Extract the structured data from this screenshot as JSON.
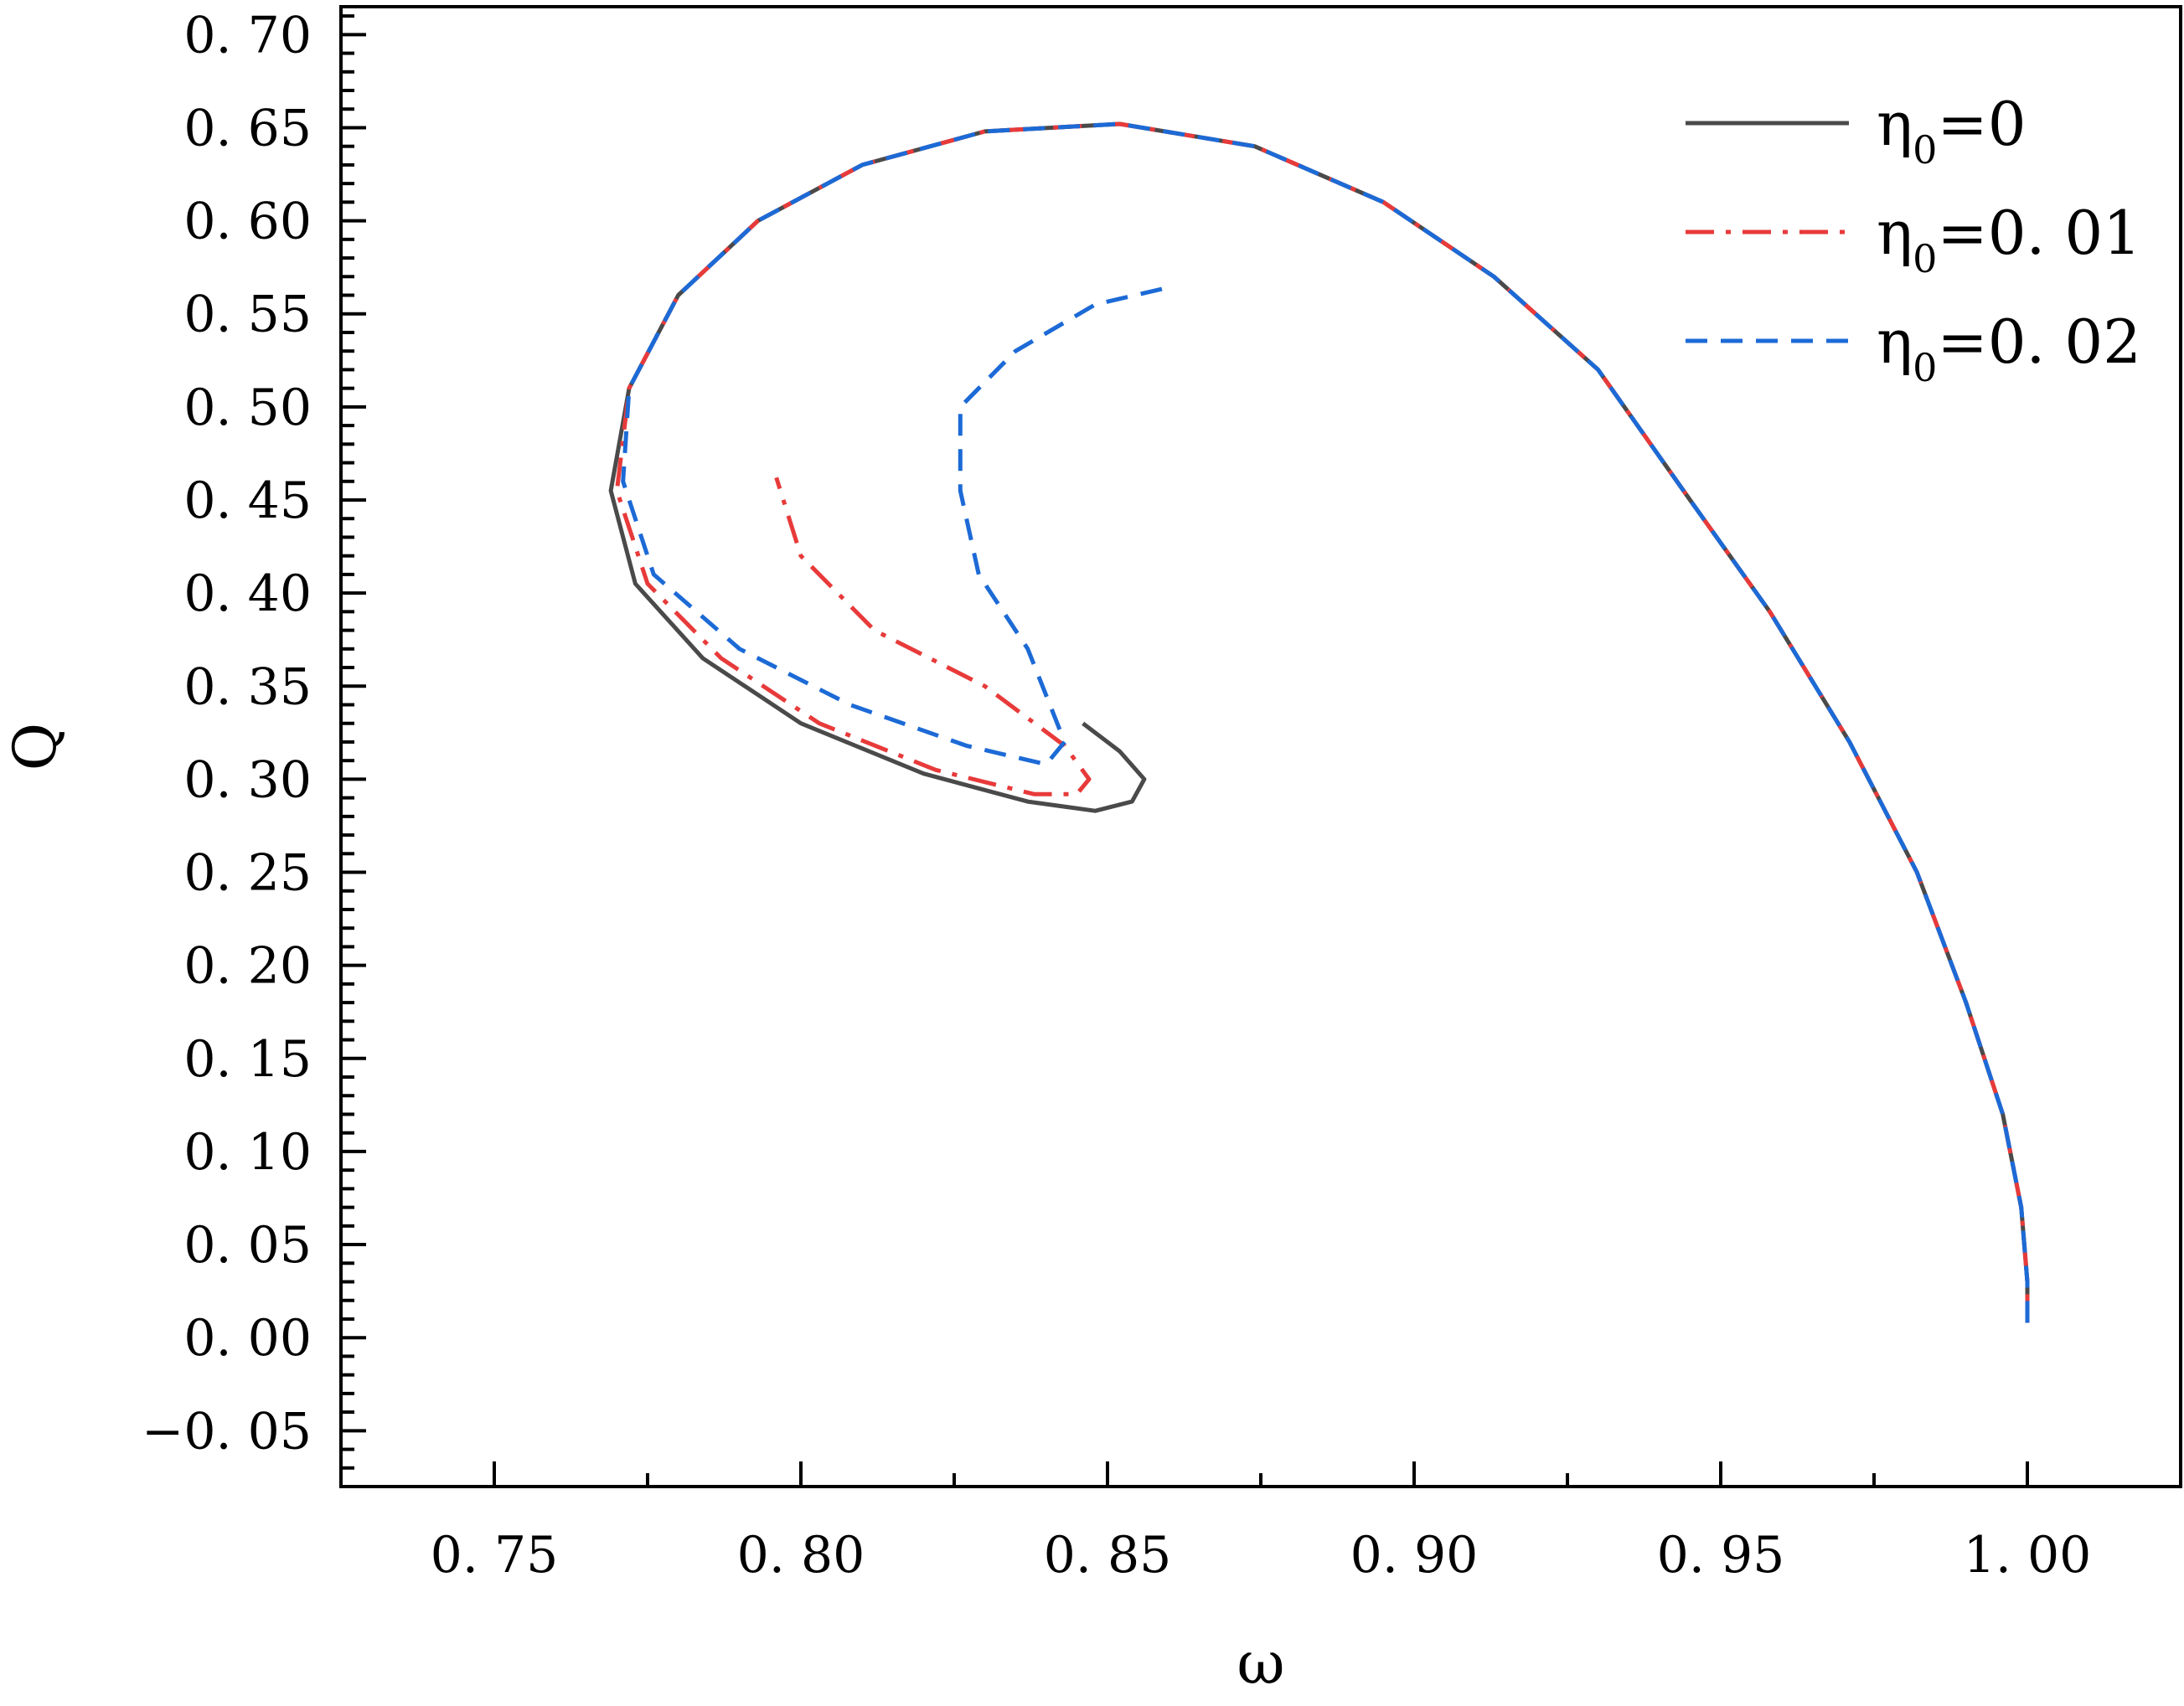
{
  "chart_data": {
    "type": "line",
    "xlabel": "ω",
    "ylabel": "Q",
    "xlim": [
      0.725,
      1.025
    ],
    "ylim": [
      -0.08,
      0.715
    ],
    "x_ticks": [
      0.75,
      0.8,
      0.85,
      0.9,
      0.95,
      1.0
    ],
    "x_tick_labels": [
      "0. 75",
      "0. 80",
      "0. 85",
      "0. 90",
      "0. 95",
      "1. 00"
    ],
    "y_ticks": [
      -0.05,
      0.0,
      0.05,
      0.1,
      0.15,
      0.2,
      0.25,
      0.3,
      0.35,
      0.4,
      0.45,
      0.5,
      0.55,
      0.6,
      0.65,
      0.7
    ],
    "y_tick_labels": [
      "−0. 05",
      "0. 00",
      "0. 05",
      "0. 10",
      "0. 15",
      "0. 20",
      "0. 25",
      "0. 30",
      "0. 35",
      "0. 40",
      "0. 45",
      "0. 50",
      "0. 55",
      "0. 60",
      "0. 65",
      "0. 70"
    ],
    "grid": false,
    "legend_position": "top-right",
    "series": [
      {
        "name_main": "η",
        "name_sub": "0",
        "name_rest": "=0",
        "color": "#4a4a4a",
        "style": "solid",
        "points": [
          [
            1.0,
            0.008
          ],
          [
            1.0,
            0.03
          ],
          [
            0.999,
            0.07
          ],
          [
            0.996,
            0.12
          ],
          [
            0.99,
            0.18
          ],
          [
            0.982,
            0.25
          ],
          [
            0.971,
            0.32
          ],
          [
            0.958,
            0.39
          ],
          [
            0.945,
            0.45
          ],
          [
            0.93,
            0.52
          ],
          [
            0.913,
            0.57
          ],
          [
            0.895,
            0.61
          ],
          [
            0.874,
            0.64
          ],
          [
            0.852,
            0.652
          ],
          [
            0.83,
            0.648
          ],
          [
            0.81,
            0.63
          ],
          [
            0.793,
            0.6
          ],
          [
            0.78,
            0.56
          ],
          [
            0.772,
            0.51
          ],
          [
            0.769,
            0.455
          ],
          [
            0.773,
            0.405
          ],
          [
            0.784,
            0.365
          ],
          [
            0.8,
            0.33
          ],
          [
            0.82,
            0.303
          ],
          [
            0.837,
            0.288
          ],
          [
            0.848,
            0.283
          ],
          [
            0.854,
            0.288
          ],
          [
            0.856,
            0.3
          ],
          [
            0.852,
            0.315
          ],
          [
            0.846,
            0.33
          ]
        ]
      },
      {
        "name_main": "η",
        "name_sub": "0",
        "name_rest": "=0. 01",
        "color": "#e83a3a",
        "style": "dashdot",
        "points": [
          [
            1.0,
            0.008
          ],
          [
            1.0,
            0.03
          ],
          [
            0.999,
            0.07
          ],
          [
            0.996,
            0.12
          ],
          [
            0.99,
            0.18
          ],
          [
            0.982,
            0.25
          ],
          [
            0.971,
            0.32
          ],
          [
            0.958,
            0.39
          ],
          [
            0.945,
            0.45
          ],
          [
            0.93,
            0.52
          ],
          [
            0.913,
            0.57
          ],
          [
            0.895,
            0.61
          ],
          [
            0.874,
            0.64
          ],
          [
            0.852,
            0.652
          ],
          [
            0.83,
            0.648
          ],
          [
            0.81,
            0.63
          ],
          [
            0.793,
            0.6
          ],
          [
            0.78,
            0.56
          ],
          [
            0.772,
            0.51
          ],
          [
            0.77,
            0.455
          ],
          [
            0.775,
            0.405
          ],
          [
            0.787,
            0.365
          ],
          [
            0.803,
            0.33
          ],
          [
            0.822,
            0.305
          ],
          [
            0.838,
            0.292
          ],
          [
            0.845,
            0.292
          ],
          [
            0.847,
            0.3
          ],
          [
            0.843,
            0.318
          ],
          [
            0.83,
            0.35
          ],
          [
            0.812,
            0.38
          ],
          [
            0.8,
            0.42
          ],
          [
            0.796,
            0.462
          ]
        ]
      },
      {
        "name_main": "η",
        "name_sub": "0",
        "name_rest": "=0. 02",
        "color": "#1c6ad6",
        "style": "dashed",
        "points": [
          [
            1.0,
            0.008
          ],
          [
            1.0,
            0.03
          ],
          [
            0.999,
            0.07
          ],
          [
            0.996,
            0.12
          ],
          [
            0.99,
            0.18
          ],
          [
            0.982,
            0.25
          ],
          [
            0.971,
            0.32
          ],
          [
            0.958,
            0.39
          ],
          [
            0.945,
            0.45
          ],
          [
            0.93,
            0.52
          ],
          [
            0.913,
            0.57
          ],
          [
            0.895,
            0.61
          ],
          [
            0.874,
            0.64
          ],
          [
            0.852,
            0.652
          ],
          [
            0.83,
            0.648
          ],
          [
            0.81,
            0.63
          ],
          [
            0.793,
            0.6
          ],
          [
            0.78,
            0.56
          ],
          [
            0.772,
            0.51
          ],
          [
            0.771,
            0.46
          ],
          [
            0.776,
            0.41
          ],
          [
            0.79,
            0.37
          ],
          [
            0.808,
            0.34
          ],
          [
            0.827,
            0.318
          ],
          [
            0.84,
            0.308
          ],
          [
            0.843,
            0.32
          ],
          [
            0.837,
            0.37
          ],
          [
            0.829,
            0.41
          ],
          [
            0.826,
            0.455
          ],
          [
            0.826,
            0.5
          ],
          [
            0.835,
            0.53
          ],
          [
            0.848,
            0.555
          ],
          [
            0.861,
            0.565
          ]
        ]
      }
    ]
  }
}
